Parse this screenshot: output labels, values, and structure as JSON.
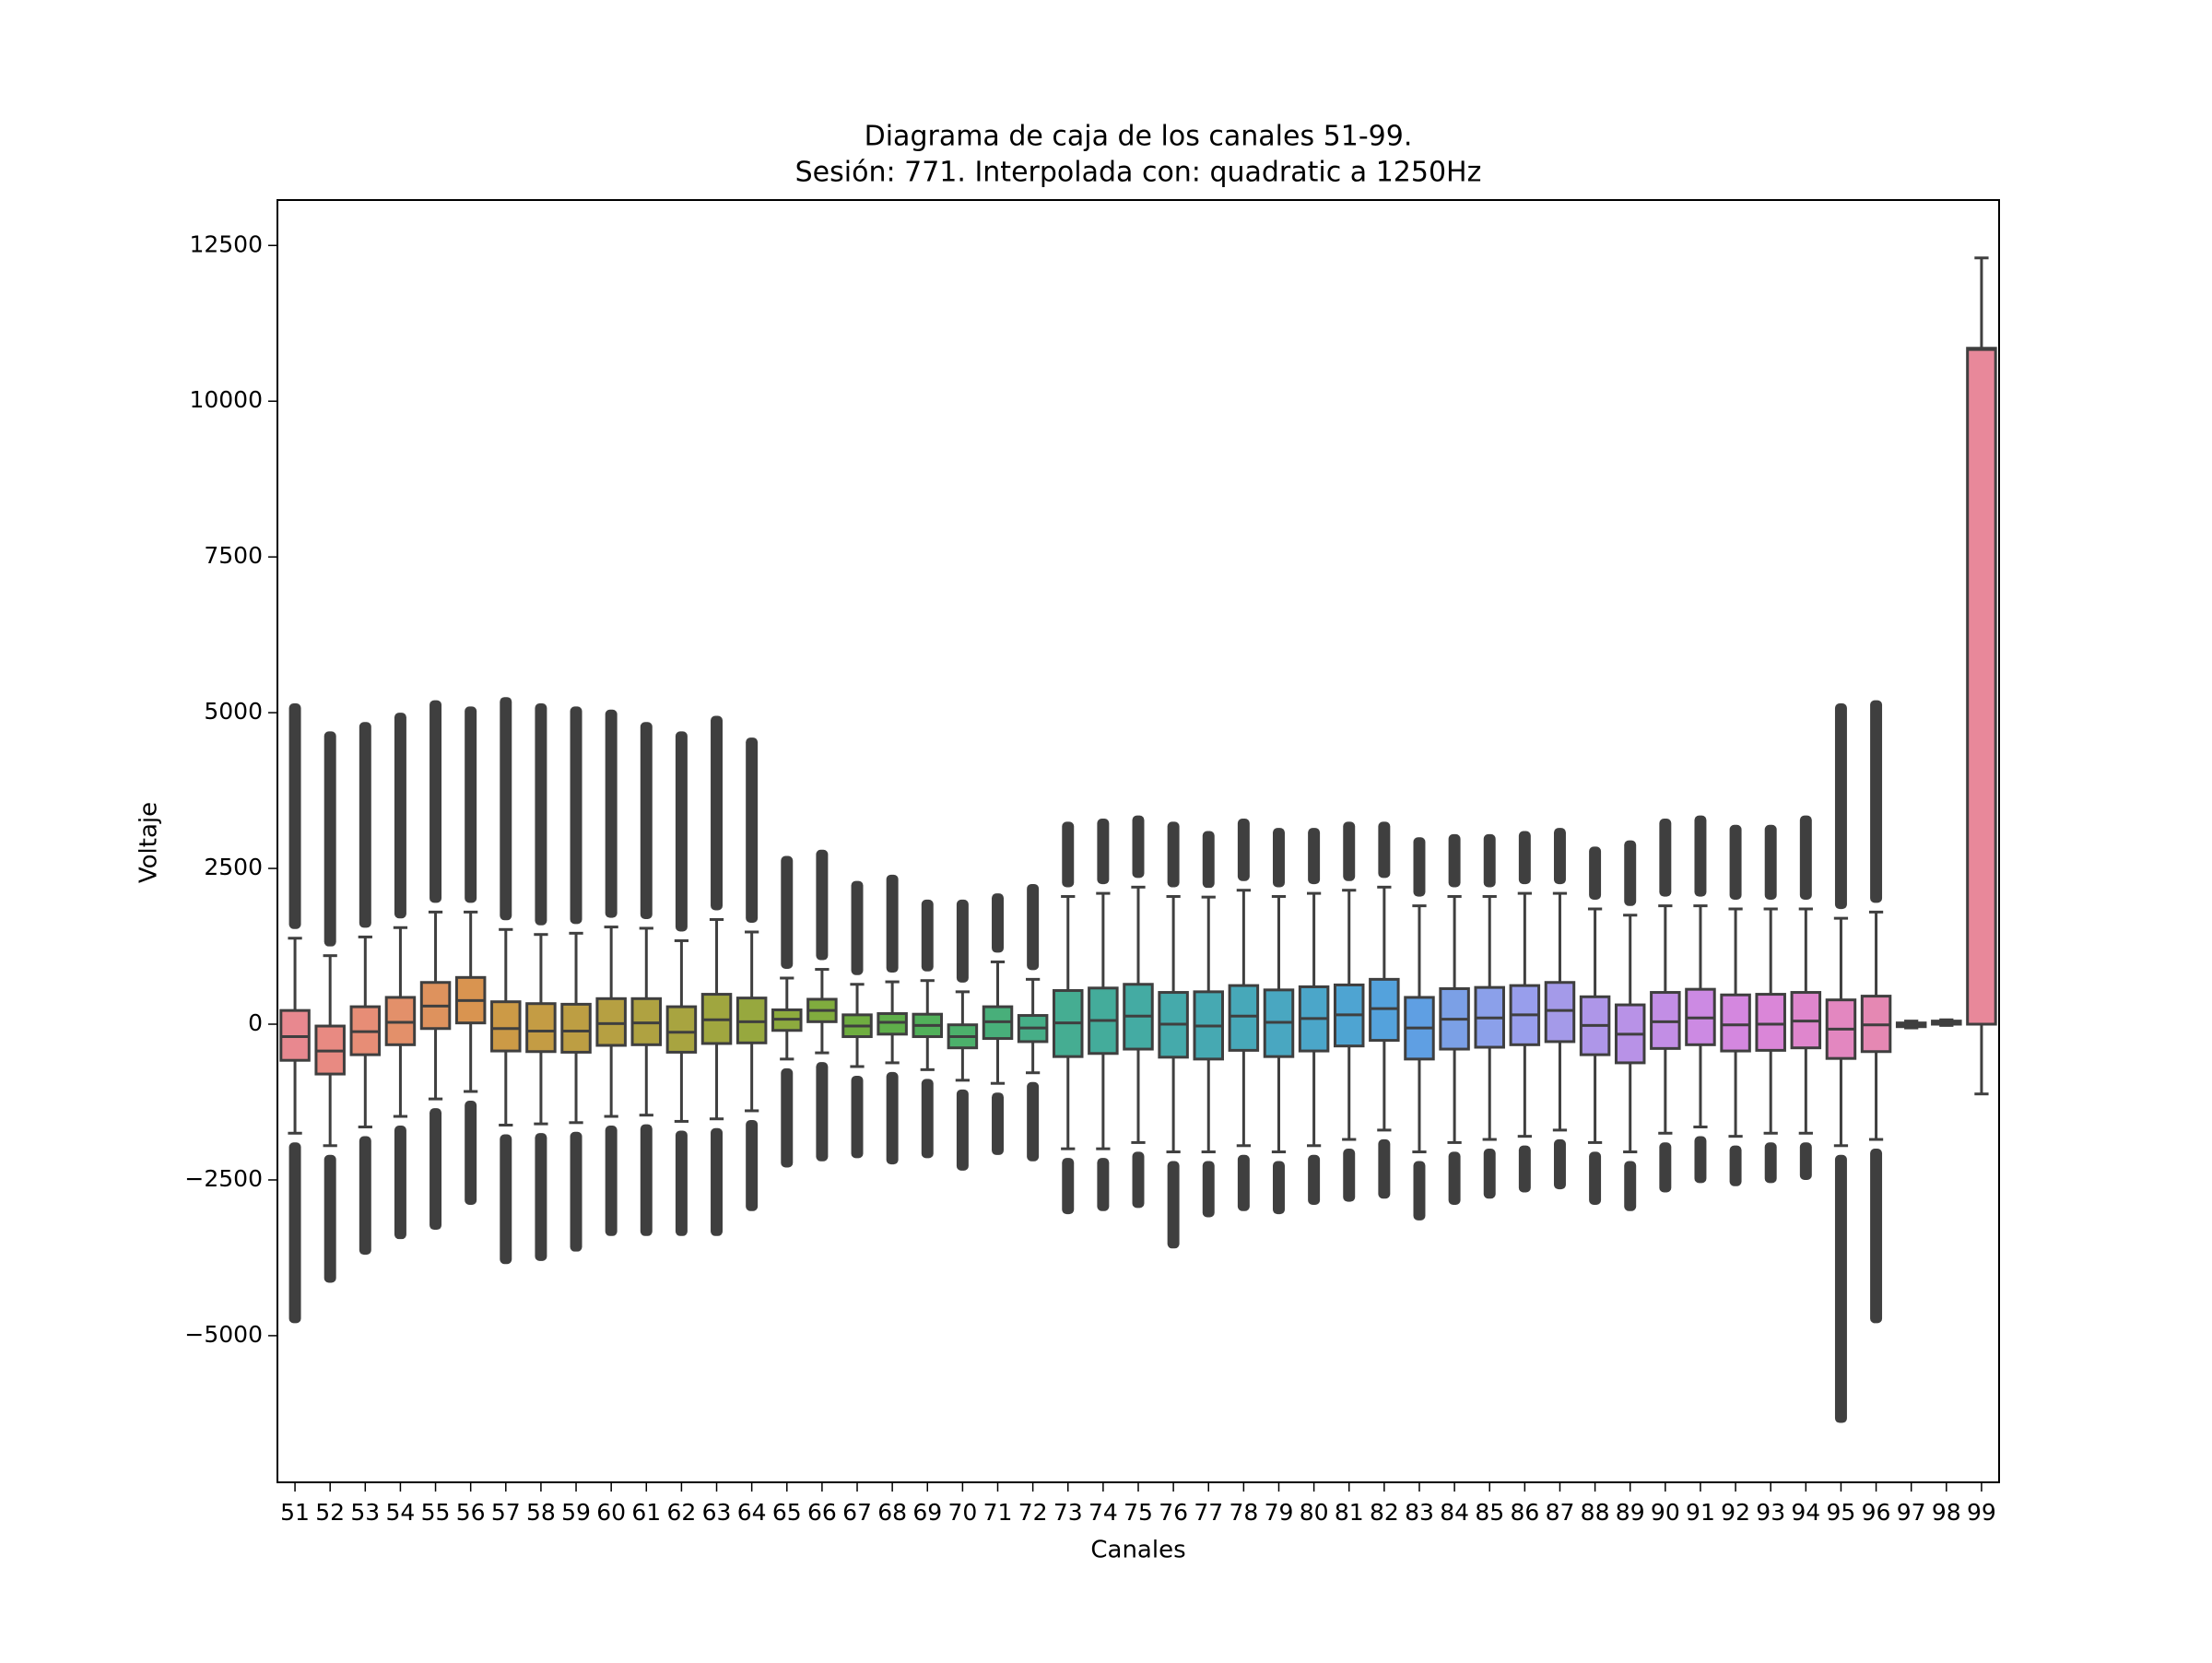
{
  "chart_data": {
    "type": "box",
    "title": "Diagrama de caja de los canales 51-99.",
    "subtitle": "Sesión: 771. Interpolada con: quadratic a 1250Hz",
    "x_label": "Canales",
    "y_label": "Voltaje",
    "categories": [
      "51",
      "52",
      "53",
      "54",
      "55",
      "56",
      "57",
      "58",
      "59",
      "60",
      "61",
      "62",
      "63",
      "64",
      "65",
      "66",
      "67",
      "68",
      "69",
      "70",
      "71",
      "72",
      "73",
      "74",
      "75",
      "76",
      "77",
      "78",
      "79",
      "80",
      "81",
      "82",
      "83",
      "84",
      "85",
      "86",
      "87",
      "88",
      "89",
      "90",
      "91",
      "92",
      "93",
      "94",
      "95",
      "96",
      "97",
      "98",
      "99"
    ],
    "q1": [
      -580,
      -800,
      -490,
      -330,
      -70,
      20,
      -430,
      -440,
      -450,
      -340,
      -330,
      -450,
      -310,
      -300,
      -100,
      40,
      -200,
      -160,
      -200,
      -380,
      -230,
      -280,
      -520,
      -470,
      -400,
      -530,
      -560,
      -420,
      -520,
      -430,
      -350,
      -260,
      -560,
      -400,
      -370,
      -330,
      -280,
      -490,
      -620,
      -390,
      -330,
      -430,
      -420,
      -380,
      -550,
      -440,
      -40,
      0,
      0
    ],
    "median": [
      -200,
      -430,
      -120,
      30,
      290,
      380,
      -70,
      -110,
      -110,
      10,
      20,
      -130,
      70,
      40,
      80,
      220,
      -30,
      30,
      -20,
      -200,
      40,
      -60,
      20,
      60,
      130,
      0,
      -30,
      130,
      30,
      90,
      150,
      250,
      -60,
      80,
      100,
      150,
      220,
      -20,
      -160,
      40,
      100,
      -10,
      0,
      50,
      -80,
      -10,
      0,
      20,
      10830
    ],
    "q3": [
      220,
      -30,
      280,
      430,
      670,
      750,
      360,
      330,
      320,
      410,
      410,
      280,
      480,
      420,
      230,
      400,
      150,
      170,
      160,
      -10,
      280,
      140,
      540,
      580,
      640,
      510,
      520,
      620,
      550,
      600,
      630,
      720,
      430,
      570,
      590,
      620,
      670,
      440,
      310,
      510,
      560,
      470,
      480,
      510,
      390,
      450,
      20,
      50,
      10850
    ],
    "whisker_low": [
      -1750,
      -1950,
      -1650,
      -1480,
      -1200,
      -1080,
      -1620,
      -1600,
      -1580,
      -1480,
      -1460,
      -1560,
      -1520,
      -1390,
      -560,
      -460,
      -680,
      -620,
      -730,
      -900,
      -950,
      -780,
      -2000,
      -2000,
      -1900,
      -2050,
      -2050,
      -1950,
      -2050,
      -1950,
      -1850,
      -1700,
      -2050,
      -1900,
      -1850,
      -1800,
      -1700,
      -1900,
      -2050,
      -1750,
      -1650,
      -1800,
      -1750,
      -1750,
      -1950,
      -1850,
      -60,
      -20,
      -1120
    ],
    "whisker_high": [
      1380,
      1100,
      1400,
      1550,
      1800,
      1800,
      1520,
      1440,
      1460,
      1560,
      1540,
      1340,
      1680,
      1480,
      740,
      880,
      640,
      680,
      700,
      520,
      1000,
      720,
      2050,
      2100,
      2200,
      2050,
      2040,
      2150,
      2050,
      2100,
      2150,
      2200,
      1900,
      2050,
      2050,
      2100,
      2100,
      1850,
      1750,
      1900,
      1900,
      1850,
      1850,
      1850,
      1700,
      1800,
      50,
      70,
      12300
    ],
    "flier_min": [
      -4800,
      -4150,
      -3700,
      -3450,
      -3300,
      -2900,
      -3850,
      -3800,
      -3650,
      -3400,
      -3400,
      -3400,
      -3400,
      -3000,
      -2300,
      -2200,
      -2150,
      -2250,
      -2150,
      -2350,
      -2100,
      -2200,
      -3050,
      -3000,
      -2950,
      -3600,
      -3100,
      -3000,
      -3050,
      -2900,
      -2850,
      -2800,
      -3150,
      -2900,
      -2800,
      -2700,
      -2650,
      -2900,
      -3000,
      -2700,
      -2550,
      -2600,
      -2550,
      -2500,
      -6400,
      -4800,
      null,
      null,
      null
    ],
    "flier_max": [
      5150,
      4700,
      4850,
      5000,
      5200,
      5100,
      5250,
      5150,
      5100,
      5050,
      4850,
      4700,
      4950,
      4600,
      2700,
      2800,
      2300,
      2400,
      2000,
      2000,
      2100,
      2250,
      3250,
      3300,
      3350,
      3250,
      3100,
      3300,
      3150,
      3150,
      3250,
      3250,
      3000,
      3050,
      3050,
      3100,
      3150,
      2850,
      2950,
      3300,
      3350,
      3200,
      3200,
      3350,
      5150,
      5200,
      null,
      null,
      null
    ],
    "colors": [
      "#e8888f",
      "#e88a82",
      "#e78d76",
      "#e3906a",
      "#de925d",
      "#d99450",
      "#cc9a46",
      "#c49c44",
      "#bd9e43",
      "#b6a042",
      "#afa241",
      "#a8a440",
      "#a0a63f",
      "#97a83e",
      "#8daa3e",
      "#80ac3e",
      "#6fae40",
      "#5faf4a",
      "#51b05a",
      "#4cb06b",
      "#48af7a",
      "#46ae87",
      "#45ad92",
      "#44ac9b",
      "#44aba3",
      "#45aaab",
      "#46a9b2",
      "#47a8b9",
      "#49a7c1",
      "#4ba6c9",
      "#4ea4d2",
      "#54a2dc",
      "#5f9fe3",
      "#7ba0e6",
      "#8ba0ea",
      "#989eec",
      "#a49ae9",
      "#ae96e8",
      "#b892e7",
      "#c28ee5",
      "#cc8ae3",
      "#d487df",
      "#da86d8",
      "#df86cd",
      "#e387c0",
      "#e588b3",
      "#e689a8",
      "#e78a9d",
      "#e8889a"
    ],
    "edge_color": "#3f3f3f",
    "ylim": [
      -7354,
      13229
    ],
    "yticks": [
      {
        "value": -5000,
        "label": "−5000"
      },
      {
        "value": -2500,
        "label": "−2500"
      },
      0,
      2500,
      5000,
      7500,
      10000,
      12500
    ]
  }
}
